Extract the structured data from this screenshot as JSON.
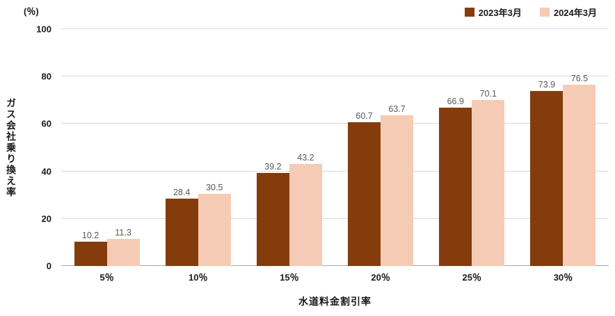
{
  "chart_data": {
    "type": "bar",
    "title": "",
    "unit_label": "(％)",
    "ylabel": "ガス会社乗り換え率",
    "xlabel": "水道料金割引率",
    "categories": [
      "5％",
      "10％",
      "15％",
      "20％",
      "25％",
      "30％"
    ],
    "series": [
      {
        "name": "2023年3月",
        "color": "#843C0C",
        "values": [
          10.2,
          28.4,
          39.2,
          60.7,
          66.9,
          73.9
        ]
      },
      {
        "name": "2024年3月",
        "color": "#F5CBB5",
        "values": [
          11.3,
          30.5,
          43.2,
          63.7,
          70.1,
          76.5
        ]
      }
    ],
    "ylim": [
      0,
      100
    ],
    "yticks": [
      0,
      20,
      40,
      60,
      80,
      100
    ],
    "grid": true,
    "legend_position": "top-right"
  },
  "colors": {
    "series1": "#843C0C",
    "series2": "#F5CBB5",
    "gridline": "#d9d9d9",
    "axis": "#a6a6a6",
    "value_label": "#595959",
    "text": "#1a1a1a"
  }
}
